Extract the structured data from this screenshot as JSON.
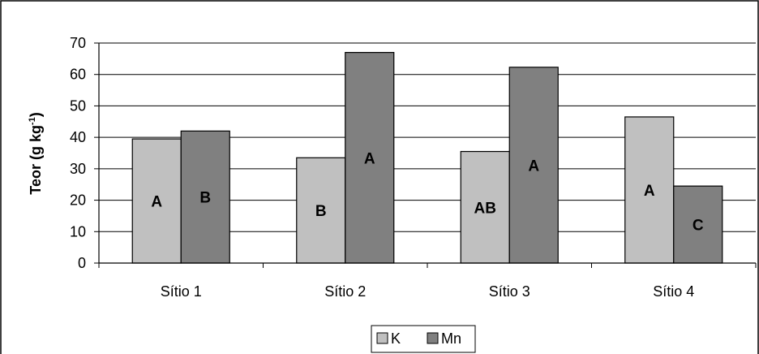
{
  "chart_data": {
    "type": "bar",
    "categories": [
      "Sítio 1",
      "Sítio 2",
      "Sítio 3",
      "Sítio 4"
    ],
    "series": [
      {
        "name": "K",
        "values": [
          39.5,
          33.5,
          35.5,
          46.5
        ],
        "color": "#c0c0c0",
        "labels": [
          "A",
          "B",
          "AB",
          "A"
        ]
      },
      {
        "name": "Mn",
        "values": [
          42,
          67,
          62.3,
          24.5
        ],
        "color": "#808080",
        "labels": [
          "B",
          "A",
          "A",
          "C"
        ]
      }
    ],
    "title": "",
    "ylabel_main": "Teor (g kg",
    "ylabel_sup": "-1",
    "ylabel_end": ")",
    "xlabel": "",
    "ylim": [
      0,
      70
    ],
    "yticks": [
      0,
      10,
      20,
      30,
      40,
      50,
      60,
      70
    ],
    "grid": true,
    "legend_position": "bottom-center"
  }
}
